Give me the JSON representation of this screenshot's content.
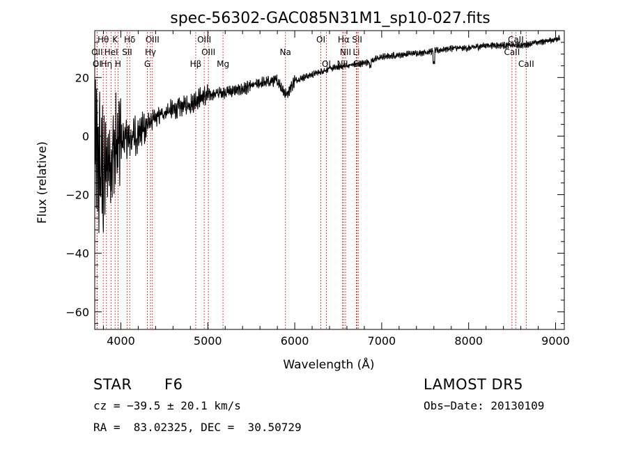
{
  "chart_data": {
    "type": "line",
    "title": "spec-56302-GAC085N31M1_sp10-027.fits",
    "xlabel": "Wavelength (Å)",
    "ylabel": "Flux (relative)",
    "xlim": [
      3700,
      9100
    ],
    "ylim": [
      -66,
      36
    ],
    "xticks": [
      4000,
      5000,
      6000,
      7000,
      8000,
      9000
    ],
    "xtick_labels": [
      "4000",
      "5000",
      "6000",
      "7000",
      "8000",
      "9000"
    ],
    "yticks": [
      -60,
      -40,
      -20,
      0,
      20
    ],
    "ytick_labels": [
      "−60",
      "−40",
      "−20",
      "0",
      "20"
    ],
    "grid": false,
    "continuum": [
      [
        3700,
        -6
      ],
      [
        3750,
        -10
      ],
      [
        3800,
        -14
      ],
      [
        3850,
        -8
      ],
      [
        3900,
        -6
      ],
      [
        3950,
        -4
      ],
      [
        4000,
        -2
      ],
      [
        4050,
        -1
      ],
      [
        4100,
        -1
      ],
      [
        4150,
        0
      ],
      [
        4200,
        0.5
      ],
      [
        4300,
        4
      ],
      [
        4400,
        6
      ],
      [
        4500,
        8
      ],
      [
        4600,
        9
      ],
      [
        4700,
        10
      ],
      [
        4800,
        11
      ],
      [
        4900,
        13
      ],
      [
        5000,
        14
      ],
      [
        5200,
        15
      ],
      [
        5400,
        16
      ],
      [
        5600,
        18
      ],
      [
        5800,
        19
      ],
      [
        5900,
        14
      ],
      [
        6000,
        19
      ],
      [
        6200,
        21
      ],
      [
        6400,
        23
      ],
      [
        6600,
        24
      ],
      [
        6800,
        25
      ],
      [
        7000,
        27
      ],
      [
        7300,
        28
      ],
      [
        7600,
        29
      ],
      [
        7800,
        30
      ],
      [
        8000,
        30
      ],
      [
        8200,
        31
      ],
      [
        8400,
        31
      ],
      [
        8600,
        31
      ],
      [
        8800,
        32
      ],
      [
        9000,
        33
      ],
      [
        9050,
        34
      ]
    ],
    "line_markers": [
      {
        "name": "Hθ",
        "x": 3798,
        "row": 0
      },
      {
        "name": "K",
        "x": 3934,
        "row": 0
      },
      {
        "name": "Hδ",
        "x": 4102,
        "row": 0
      },
      {
        "name": "OIII",
        "x": 4363,
        "row": 0
      },
      {
        "name": "OIII",
        "x": 4959,
        "row": 0
      },
      {
        "name": "OI",
        "x": 6300,
        "row": 0
      },
      {
        "name": "Hα",
        "x": 6563,
        "row": 0
      },
      {
        "name": "SII",
        "x": 6717,
        "row": 0
      },
      {
        "name": "CaII",
        "x": 8542,
        "row": 0
      },
      {
        "name": "OII",
        "x": 3727,
        "row": 1
      },
      {
        "name": "HeI",
        "x": 3889,
        "row": 1
      },
      {
        "name": "SII",
        "x": 4072,
        "row": 1
      },
      {
        "name": "Hγ",
        "x": 4341,
        "row": 1
      },
      {
        "name": "OIII",
        "x": 5007,
        "row": 1
      },
      {
        "name": "Na",
        "x": 5893,
        "row": 1
      },
      {
        "name": "NII",
        "x": 6584,
        "row": 1
      },
      {
        "name": "Li",
        "x": 6708,
        "row": 1
      },
      {
        "name": "CaII",
        "x": 8498,
        "row": 1
      },
      {
        "name": "OI",
        "x": 3727,
        "row": 2
      },
      {
        "name": "Hη",
        "x": 3835,
        "row": 2
      },
      {
        "name": "H",
        "x": 3968,
        "row": 2
      },
      {
        "name": "G",
        "x": 4305,
        "row": 2
      },
      {
        "name": "Hβ",
        "x": 4861,
        "row": 2
      },
      {
        "name": "Mg",
        "x": 5175,
        "row": 2
      },
      {
        "name": "OI",
        "x": 6364,
        "row": 2
      },
      {
        "name": "NII",
        "x": 6548,
        "row": 2
      },
      {
        "name": "SII",
        "x": 6731,
        "row": 2
      },
      {
        "name": "CaII",
        "x": 8662,
        "row": 2
      }
    ]
  },
  "info": {
    "object_class": "STAR",
    "subclass": "F6",
    "survey": "LAMOST DR5",
    "redshift": "cz = −39.5 ± 20.1 km/s",
    "obs_date": "Obs−Date: 20130109",
    "coords": "RA =  83.02325, DEC =  30.50729"
  }
}
